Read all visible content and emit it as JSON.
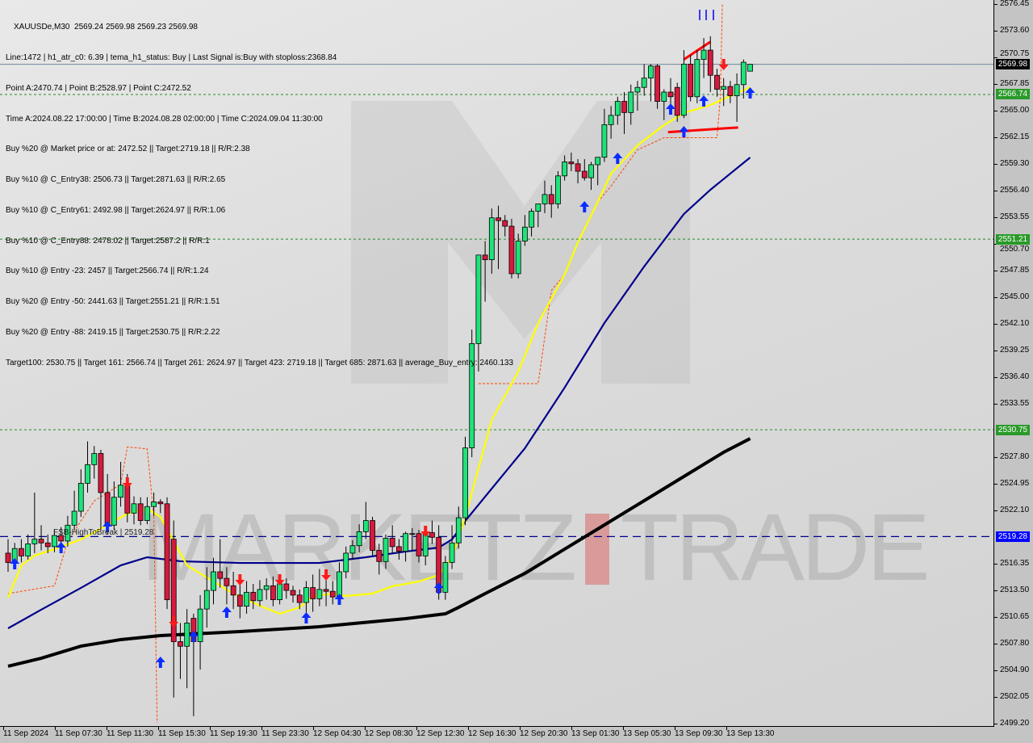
{
  "header": {
    "title": "XAUUSDe,M30  2569.24 2569.98 2569.23 2569.98",
    "lines": [
      "Line:1472 | h1_atr_c0: 6.39 | tema_h1_status: Buy | Last Signal is:Buy with stoploss:2368.84",
      "Point A:2470.74 | Point B:2528.97 | Point C:2472.52",
      "Time A:2024.08.22 17:00:00 | Time B:2024.08.28 02:00:00 | Time C:2024.09.04 11:30:00",
      "Buy %20 @ Market price or at: 2472.52 || Target:2719.18 || R/R:2.38",
      "Buy %10 @ C_Entry38: 2506.73 || Target:2871.63 || R/R:2.65",
      "Buy %10 @ C_Entry61: 2492.98 || Target:2624.97 || R/R:1.06",
      "Buy %10 @ C_Entry88: 2478.02 || Target:2587.2 || R/R:1",
      "Buy %10 @ Entry -23: 2457 || Target:2566.74 || R/R:1.24",
      "Buy %20 @ Entry -50: 2441.63 || Target:2551.21 || R/R:1.51",
      "Buy %20 @ Entry -88: 2419.15 || Target:2530.75 || R/R:2.22",
      "Target100: 2530.75 || Target 161: 2566.74 || Target 261: 2624.97 || Target 423: 2719.18 || Target 685: 2871.63 || average_Buy_entry: 2460.133"
    ]
  },
  "watermark": {
    "left": "MARKETZ",
    "right": "TRADE"
  },
  "fsb_label": "FSB-HighToBreak | 2519.28",
  "colors": {
    "bull": "#1ee37a",
    "bear": "#d8193d",
    "fast_ma": "#ffff00",
    "mid_ma": "#00008b",
    "slow_ma": "#000000",
    "band": "#ff4500",
    "level": "#228b22",
    "current": "#000000",
    "fsb": "#0000ff"
  },
  "chart_data": {
    "type": "candlestick",
    "symbol": "XAUUSDe",
    "timeframe": "M30",
    "ylim": [
      2499.2,
      2576.45
    ],
    "y_ticks": [
      "2576.45",
      "2573.60",
      "2570.75",
      "2567.85",
      "2565.00",
      "2562.15",
      "2559.30",
      "2556.40",
      "2553.55",
      "2550.70",
      "2547.85",
      "2545.00",
      "2542.10",
      "2539.25",
      "2536.40",
      "2533.55",
      "2527.80",
      "2524.95",
      "2522.10",
      "2516.35",
      "2513.50",
      "2510.65",
      "2507.80",
      "2504.90",
      "2502.05",
      "2499.20"
    ],
    "x_ticks": [
      "11 Sep 2024",
      "11 Sep 07:30",
      "11 Sep 11:30",
      "11 Sep 15:30",
      "11 Sep 19:30",
      "11 Sep 23:30",
      "12 Sep 04:30",
      "12 Sep 08:30",
      "12 Sep 12:30",
      "12 Sep 16:30",
      "12 Sep 20:30",
      "13 Sep 01:30",
      "13 Sep 05:30",
      "13 Sep 09:30",
      "13 Sep 13:30"
    ],
    "price_levels": [
      {
        "value": 2569.98,
        "label": "2569.98",
        "style": "current"
      },
      {
        "value": 2566.74,
        "label": "2566.74",
        "style": "target"
      },
      {
        "value": 2551.21,
        "label": "2551.21",
        "style": "target"
      },
      {
        "value": 2530.75,
        "label": "2530.75",
        "style": "target"
      },
      {
        "value": 2519.28,
        "label": "2519.28",
        "style": "fsb"
      }
    ],
    "ohlc": [
      [
        2517.5,
        2519,
        2515.5,
        2516.5
      ],
      [
        2516.5,
        2518.6,
        2515.8,
        2518
      ],
      [
        2518,
        2519,
        2516.5,
        2517.2
      ],
      [
        2517.2,
        2519.5,
        2516.8,
        2518.5
      ],
      [
        2518.5,
        2524,
        2517.5,
        2519
      ],
      [
        2519,
        2520.5,
        2517.8,
        2518.6
      ],
      [
        2518.6,
        2519.5,
        2517.5,
        2518.2
      ],
      [
        2518.2,
        2520,
        2517.6,
        2519.4
      ],
      [
        2519.4,
        2520.3,
        2518,
        2518.8
      ],
      [
        2518.8,
        2521.5,
        2518.2,
        2520.5
      ],
      [
        2520.5,
        2524.2,
        2520,
        2522
      ],
      [
        2522,
        2526.5,
        2521.4,
        2525
      ],
      [
        2525,
        2529.5,
        2524,
        2527
      ],
      [
        2527,
        2529,
        2525.5,
        2528.2
      ],
      [
        2528.2,
        2528.6,
        2520,
        2524
      ],
      [
        2524,
        2526,
        2519.5,
        2520.5
      ],
      [
        2520.5,
        2525.2,
        2520,
        2523.5
      ],
      [
        2523.5,
        2527.3,
        2522.5,
        2524.8
      ],
      [
        2524.8,
        2526,
        2520.8,
        2521.8
      ],
      [
        2521.8,
        2523.6,
        2520.6,
        2522.8
      ],
      [
        2522.8,
        2523.5,
        2520.5,
        2521
      ],
      [
        2521,
        2523.5,
        2520.6,
        2522.5
      ],
      [
        2522.5,
        2524,
        2521.5,
        2523
      ],
      [
        2523,
        2523.3,
        2521.8,
        2522.8
      ],
      [
        2522.8,
        2523.5,
        2511.5,
        2512.5
      ],
      [
        2519,
        2521,
        2502,
        2508
      ],
      [
        2508,
        2510,
        2504,
        2507.5
      ],
      [
        2507.5,
        2511.5,
        2503,
        2510
      ],
      [
        2510.5,
        2511,
        2500,
        2508
      ],
      [
        2508,
        2513,
        2505,
        2511.5
      ],
      [
        2511.5,
        2516,
        2509.5,
        2513.5
      ],
      [
        2513.5,
        2517,
        2512,
        2515.5
      ],
      [
        2515.5,
        2519,
        2513.8,
        2514.8
      ],
      [
        2514.8,
        2516,
        2512,
        2514
      ],
      [
        2514,
        2515.5,
        2511.5,
        2513
      ],
      [
        2513,
        2514.5,
        2510.5,
        2511.8
      ],
      [
        2511.8,
        2514.5,
        2511,
        2513.3
      ],
      [
        2513.3,
        2514.2,
        2511.5,
        2512.4
      ],
      [
        2512.4,
        2514.6,
        2511.8,
        2513.6
      ],
      [
        2513.6,
        2514.8,
        2512.5,
        2514
      ],
      [
        2514,
        2515,
        2511.8,
        2512.5
      ],
      [
        2512.5,
        2515,
        2512,
        2514.2
      ],
      [
        2514.2,
        2514.8,
        2512.6,
        2513.5
      ],
      [
        2513.5,
        2514,
        2512.2,
        2513
      ],
      [
        2513,
        2513.6,
        2511.5,
        2512.2
      ],
      [
        2512.2,
        2514.5,
        2511,
        2513.8
      ],
      [
        2513.8,
        2515.2,
        2511.2,
        2512.6
      ],
      [
        2512.6,
        2515.8,
        2511.8,
        2513.6
      ],
      [
        2513.6,
        2515,
        2511.8,
        2513.4
      ],
      [
        2513.4,
        2514.5,
        2512,
        2512.8
      ],
      [
        2512.8,
        2516.5,
        2512.2,
        2515.5
      ],
      [
        2515.5,
        2518.2,
        2514.8,
        2517.5
      ],
      [
        2517.5,
        2518.9,
        2516.8,
        2518.3
      ],
      [
        2518.3,
        2520.6,
        2517.6,
        2519.8
      ],
      [
        2519.8,
        2523,
        2519,
        2521
      ],
      [
        2521,
        2521.4,
        2517.2,
        2517.8
      ],
      [
        2517.8,
        2518.5,
        2515.2,
        2516.6
      ],
      [
        2516.6,
        2519.5,
        2515.8,
        2519.1
      ],
      [
        2519.1,
        2520.5,
        2517.5,
        2518.2
      ],
      [
        2518.2,
        2519,
        2516.8,
        2517.7
      ],
      [
        2517.7,
        2519.8,
        2516.6,
        2519.6
      ],
      [
        2519.6,
        2520.2,
        2517.8,
        2519.6
      ],
      [
        2519.6,
        2520,
        2516.5,
        2517.2
      ],
      [
        2517.2,
        2519,
        2516.2,
        2519.7
      ],
      [
        2519.7,
        2521,
        2518.5,
        2519.2
      ],
      [
        2519.2,
        2520.5,
        2512.5,
        2513.3
      ],
      [
        2513.3,
        2517.2,
        2512.5,
        2516.5
      ],
      [
        2516.5,
        2520.5,
        2515.8,
        2518.6
      ],
      [
        2518.6,
        2522.5,
        2518,
        2521.3
      ],
      [
        2521.3,
        2530,
        2520.5,
        2528.8
      ],
      [
        2528.8,
        2541.5,
        2527.8,
        2540
      ],
      [
        2540,
        2549.5,
        2537,
        2549.5
      ],
      [
        2549.5,
        2551,
        2544.5,
        2549
      ],
      [
        2549,
        2554.5,
        2547.5,
        2553.5
      ],
      [
        2553.5,
        2554.8,
        2548,
        2553.2
      ],
      [
        2553.2,
        2553.8,
        2551.5,
        2552.6
      ],
      [
        2552.6,
        2553.4,
        2547,
        2547.5
      ],
      [
        2547.5,
        2551.8,
        2547,
        2551
      ],
      [
        2551,
        2553.8,
        2550.5,
        2552.5
      ],
      [
        2552.5,
        2554.5,
        2551.5,
        2554.2
      ],
      [
        2554.2,
        2555,
        2552.5,
        2555
      ],
      [
        2555,
        2557.5,
        2554,
        2556
      ],
      [
        2556,
        2557,
        2553.5,
        2555
      ],
      [
        2555,
        2558.5,
        2554.5,
        2558
      ],
      [
        2558,
        2560.2,
        2557.5,
        2559.5
      ],
      [
        2559.5,
        2560.5,
        2558.5,
        2559.3
      ],
      [
        2559.3,
        2559.8,
        2557.2,
        2558.5
      ],
      [
        2558.5,
        2559.8,
        2557.5,
        2557.8
      ],
      [
        2557.8,
        2559.5,
        2556.5,
        2559.2
      ],
      [
        2559.2,
        2560,
        2557,
        2560
      ],
      [
        2560,
        2565.2,
        2559.5,
        2563.5
      ],
      [
        2563.5,
        2565.5,
        2562,
        2564.5
      ],
      [
        2564.5,
        2566.5,
        2563.5,
        2566
      ],
      [
        2566,
        2567,
        2562.5,
        2564.8
      ],
      [
        2564.8,
        2567.8,
        2563.5,
        2567
      ],
      [
        2567,
        2568.2,
        2565,
        2567.5
      ],
      [
        2567.5,
        2570,
        2566.6,
        2568.5
      ],
      [
        2568.5,
        2570,
        2566,
        2569.8
      ],
      [
        2569.8,
        2570,
        2565.2,
        2566
      ],
      [
        2566,
        2567.3,
        2564,
        2567
      ],
      [
        2567,
        2568.5,
        2565.2,
        2566.5
      ],
      [
        2567.5,
        2568,
        2563.8,
        2564.5
      ],
      [
        2564.5,
        2571.5,
        2564.2,
        2570
      ],
      [
        2570,
        2571,
        2566,
        2566.5
      ],
      [
        2566.5,
        2571.5,
        2565.8,
        2570.5
      ],
      [
        2570.5,
        2572.8,
        2568.5,
        2571.5
      ],
      [
        2571.5,
        2573,
        2567,
        2568.8
      ],
      [
        2568.8,
        2569.5,
        2566.5,
        2567.3
      ],
      [
        2567.3,
        2568.5,
        2565.5,
        2567.6
      ],
      [
        2567.6,
        2568.2,
        2565.8,
        2566.6
      ],
      [
        2566.6,
        2569,
        2563.8,
        2567.8
      ],
      [
        2567.8,
        2570.5,
        2566.3,
        2570.2
      ],
      [
        2569.24,
        2569.98,
        2569.23,
        2569.98
      ]
    ],
    "fast_ma": [
      [
        0,
        2512.72
      ],
      [
        2,
        2516.19
      ],
      [
        4,
        2517.23
      ],
      [
        7,
        2517.93
      ],
      [
        11,
        2518.97
      ],
      [
        15,
        2520.53
      ],
      [
        18,
        2521.74
      ],
      [
        21,
        2522.26
      ],
      [
        23,
        2521.39
      ],
      [
        25,
        2518.79
      ],
      [
        27,
        2516.19
      ],
      [
        30,
        2514.89
      ],
      [
        34,
        2513.16
      ],
      [
        38,
        2511.86
      ],
      [
        41,
        2510.99
      ],
      [
        44,
        2511.68
      ],
      [
        46,
        2512.9
      ],
      [
        49,
        2513.16
      ],
      [
        51,
        2512.9
      ],
      [
        55,
        2513.16
      ],
      [
        58,
        2513.94
      ],
      [
        62,
        2514.46
      ],
      [
        65,
        2515.15
      ],
      [
        67,
        2517.06
      ],
      [
        69,
        2521.39
      ],
      [
        71,
        2526.6
      ],
      [
        73,
        2531.8
      ],
      [
        77,
        2537.0
      ],
      [
        80,
        2542.2
      ],
      [
        84,
        2547.41
      ],
      [
        86,
        2550.87
      ],
      [
        89,
        2555.21
      ],
      [
        91,
        2558.24
      ],
      [
        95,
        2561.28
      ],
      [
        99,
        2563.45
      ],
      [
        102,
        2564.75
      ],
      [
        106,
        2565.61
      ],
      [
        110,
        2566.91
      ],
      [
        112,
        2567.52
      ]
    ],
    "mid_ma": [
      [
        0,
        2509.43
      ],
      [
        5,
        2511.43
      ],
      [
        11,
        2513.77
      ],
      [
        17,
        2516.19
      ],
      [
        21,
        2517.06
      ],
      [
        26,
        2516.63
      ],
      [
        35,
        2516.45
      ],
      [
        47,
        2516.45
      ],
      [
        54,
        2517.06
      ],
      [
        60,
        2517.67
      ],
      [
        65,
        2518.1
      ],
      [
        67,
        2518.97
      ],
      [
        69,
        2520.96
      ],
      [
        73,
        2524.43
      ],
      [
        78,
        2528.76
      ],
      [
        84,
        2535.27
      ],
      [
        90,
        2542.2
      ],
      [
        96,
        2548.27
      ],
      [
        102,
        2553.91
      ],
      [
        106,
        2556.51
      ],
      [
        112,
        2559.98
      ]
    ],
    "slow_ma": [
      [
        0,
        2505.36
      ],
      [
        5,
        2506.22
      ],
      [
        11,
        2507.52
      ],
      [
        17,
        2508.22
      ],
      [
        23,
        2508.65
      ],
      [
        35,
        2509.08
      ],
      [
        47,
        2509.6
      ],
      [
        60,
        2510.47
      ],
      [
        66,
        2510.99
      ],
      [
        68,
        2511.68
      ],
      [
        72,
        2513.16
      ],
      [
        78,
        2515.33
      ],
      [
        84,
        2517.93
      ],
      [
        90,
        2520.53
      ],
      [
        96,
        2523.13
      ],
      [
        102,
        2525.73
      ],
      [
        108,
        2528.33
      ],
      [
        112,
        2529.8
      ]
    ],
    "band_segments": [
      [
        [
          0,
          2513.16
        ],
        [
          7,
          2514.0
        ],
        [
          9,
          2518.8
        ],
        [
          13,
          2523.1
        ],
        [
          17,
          2524.9
        ],
        [
          18,
          2528.9
        ],
        [
          21,
          2528.7
        ],
        [
          22,
          2521.4
        ],
        [
          22.5,
          2499.3
        ]
      ],
      [
        [
          71,
          2535.7
        ],
        [
          80,
          2535.7
        ],
        [
          82,
          2545.7
        ],
        [
          84,
          2547.4
        ],
        [
          86,
          2550.9
        ],
        [
          89,
          2555.2
        ],
        [
          91,
          2556.9
        ],
        [
          95,
          2560.8
        ],
        [
          99,
          2562.1
        ],
        [
          107,
          2562.1
        ],
        [
          107.5,
          2566.5
        ],
        [
          107.8,
          2576.45
        ]
      ]
    ],
    "pattern_lines": [
      [
        [
          102,
          2570.5
        ],
        [
          106,
          2572.4
        ]
      ],
      [
        [
          99.6,
          2562.7
        ],
        [
          110.2,
          2563.2
        ]
      ]
    ],
    "buy_arrows": [
      [
        1,
        2516.37
      ],
      [
        8,
        2518.1
      ],
      [
        15,
        2520.35
      ],
      [
        23,
        2505.79
      ],
      [
        28,
        2508.56
      ],
      [
        33,
        2511.16
      ],
      [
        45,
        2510.56
      ],
      [
        50,
        2512.55
      ],
      [
        65,
        2513.77
      ],
      [
        87,
        2554.69
      ],
      [
        92,
        2559.89
      ],
      [
        100,
        2565.18
      ],
      [
        102,
        2562.75
      ],
      [
        105,
        2566.05
      ],
      [
        112,
        2566.91
      ]
    ],
    "sell_arrows": [
      [
        18,
        2525.04
      ],
      [
        25,
        2510.12
      ],
      [
        35,
        2514.63
      ],
      [
        41,
        2514.63
      ],
      [
        48,
        2515.15
      ],
      [
        63,
        2519.83
      ],
      [
        108,
        2569.95
      ]
    ]
  }
}
